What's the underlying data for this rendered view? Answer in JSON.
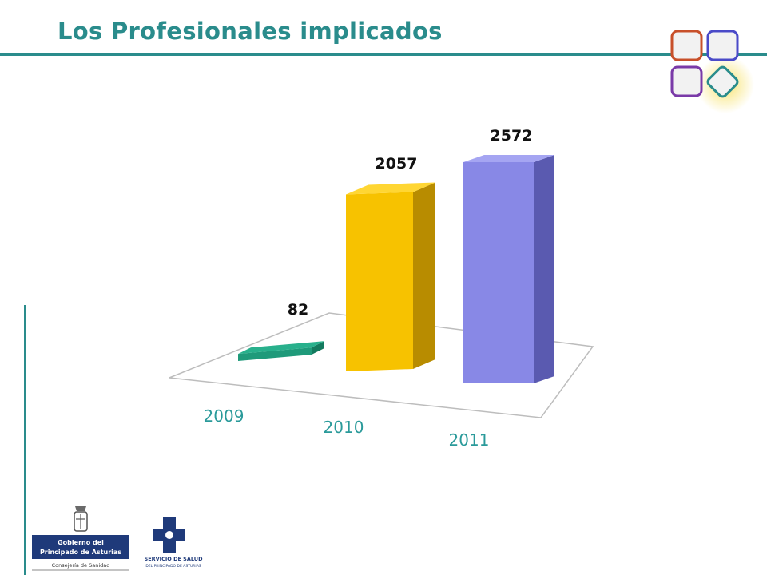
{
  "header": {
    "title": "Los Profesionales implicados"
  },
  "chart_data": {
    "type": "bar",
    "categories": [
      "2009",
      "2010",
      "2011"
    ],
    "values": [
      82,
      2057,
      2572
    ],
    "data_labels": [
      "82",
      "2057",
      "2572"
    ],
    "colors": [
      "#1f9a7a",
      "#f7c200",
      "#8888e6"
    ],
    "side_colors": [
      "#137a5e",
      "#b88c00",
      "#5a5ab0"
    ],
    "top_colors": [
      "#28b08c",
      "#ffd633",
      "#a5a5f2"
    ],
    "ylim": [
      0,
      2572
    ],
    "three_d": true,
    "grid": false,
    "legend": "none"
  },
  "footer": {
    "logo_gobierno": {
      "line1": "Gobierno del",
      "line2": "Principado de Asturias",
      "line3": "Consejería de Sanidad"
    },
    "logo_sespa": {
      "line1": "SERVICIO DE SALUD",
      "line2": "DEL PRINCIPADO DE ASTURIAS"
    }
  },
  "decor": {
    "square_colors": [
      "#c8502a",
      "#4a4ac8",
      "#7a3aa8",
      "#2a8c8c"
    ],
    "glow_color": "#f7e060"
  }
}
